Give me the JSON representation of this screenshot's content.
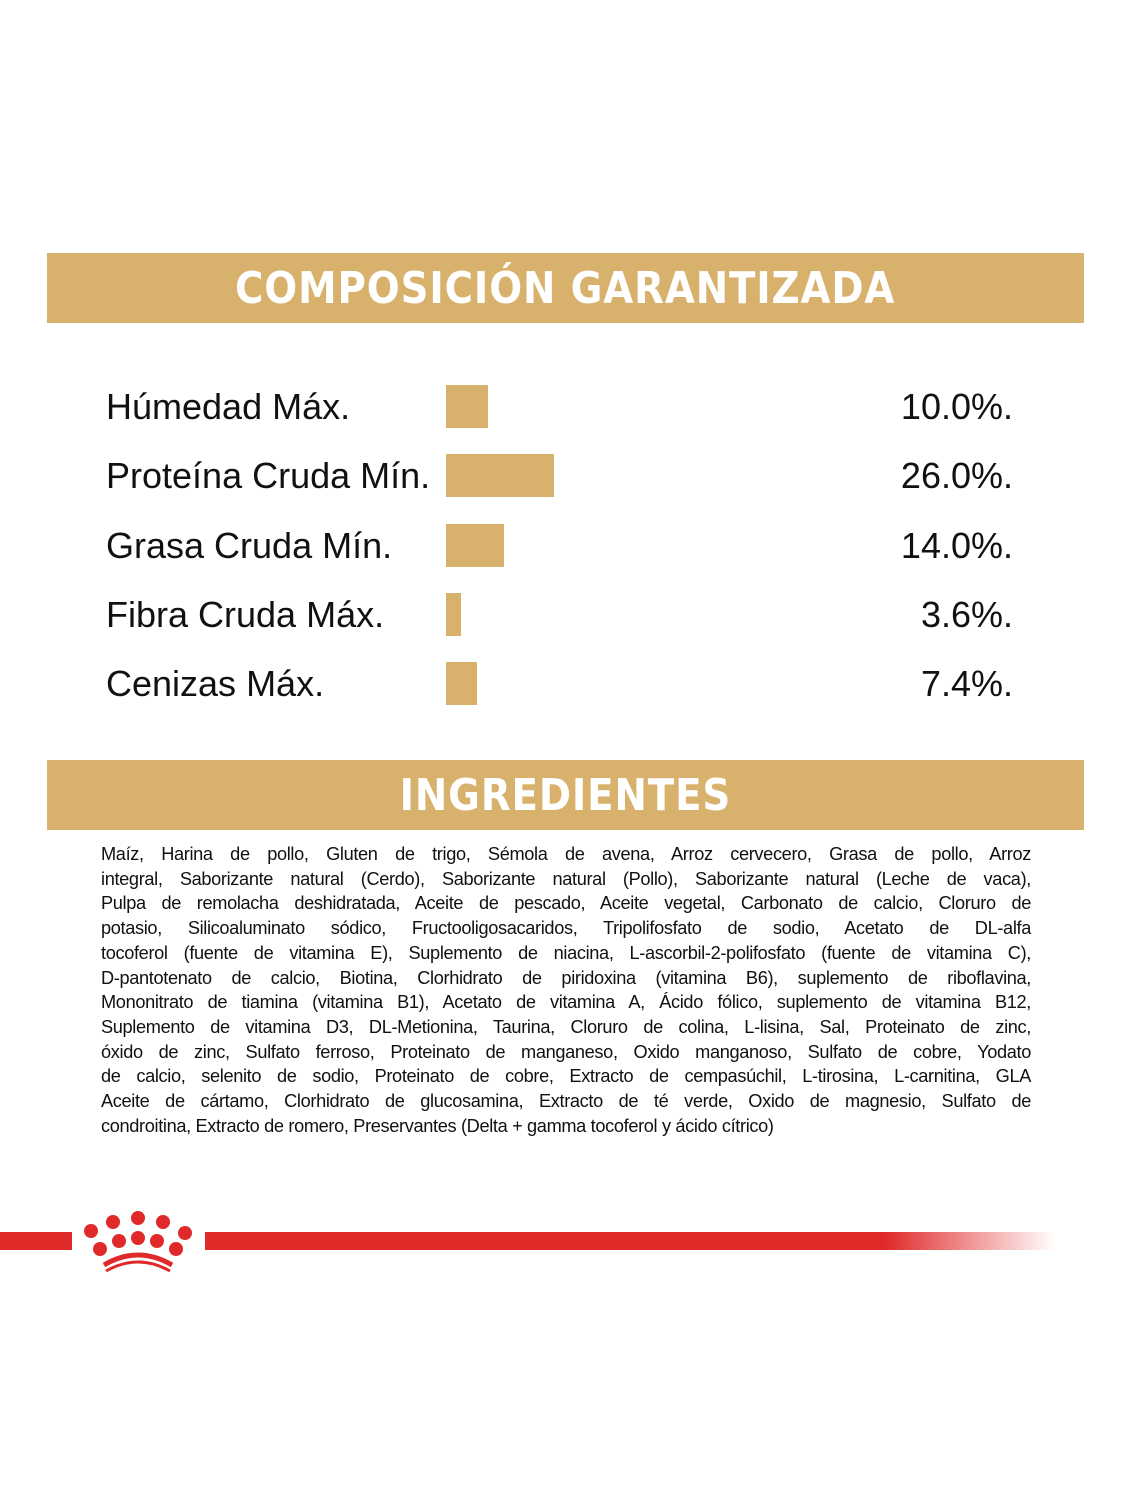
{
  "composition": {
    "title": "COMPOSICIÓN GARANTIZADA",
    "rows": [
      {
        "label": "Húmedad Máx.",
        "value_text": "10.0%.",
        "percent": 10.0
      },
      {
        "label": "Proteína Cruda Mín.",
        "value_text": "26.0%.",
        "percent": 26.0
      },
      {
        "label": "Grasa Cruda Mín.",
        "value_text": "14.0%.",
        "percent": 14.0
      },
      {
        "label": "Fibra Cruda Máx.",
        "value_text": "3.6%.",
        "percent": 3.6
      },
      {
        "label": "Cenizas Máx.",
        "value_text": "7.4%.",
        "percent": 7.4
      }
    ]
  },
  "ingredients": {
    "title": "INGREDIENTES",
    "lines": [
      "Maíz, Harina de pollo, Gluten de trigo, Sémola de avena, Arroz cervecero, Grasa de pollo, Arroz",
      "integral, Saborizante natural (Cerdo), Saborizante natural (Pollo), Saborizante natural (Leche de vaca),",
      "Pulpa de remolacha deshidratada, Aceite de pescado, Aceite vegetal, Carbonato de calcio, Cloruro de",
      "potasio, Silicoaluminato sódico, Fructooligosacaridos, Tripolifosfato de sodio, Acetato de DL-alfa",
      "tocoferol (fuente de vitamina E), Suplemento de niacina, L-ascorbil-2-polifosfato (fuente de vitamina C),",
      "D-pantotenato de calcio, Biotina, Clorhidrato de piridoxina (vitamina B6), suplemento de riboflavina,",
      "Mononitrato de tiamina (vitamina B1), Acetato de vitamina A, Ácido fólico, suplemento de vitamina B12,",
      "Suplemento de vitamina D3, DL-Metionina, Taurina, Cloruro de colina, L-lisina, Sal, Proteinato de zinc,",
      "óxido de zinc, Sulfato ferroso, Proteinato de manganeso, Oxido manganoso, Sulfato de cobre, Yodato",
      "de calcio, selenito de sodio, Proteinato de cobre, Extracto de cempasúchil, L-tirosina, L-carnitina, GLA",
      "Aceite de cártamo, Clorhidrato de glucosamina, Extracto de té verde, Oxido de magnesio, Sulfato de",
      "condroitina, Extracto de romero, Preservantes (Delta + gamma tocoferol y ácido cítrico)"
    ]
  },
  "colors": {
    "accent": "#d8b26d",
    "brand_red": "#e02a2a"
  },
  "logo": {
    "icon": "royal-canin-crown-icon"
  }
}
